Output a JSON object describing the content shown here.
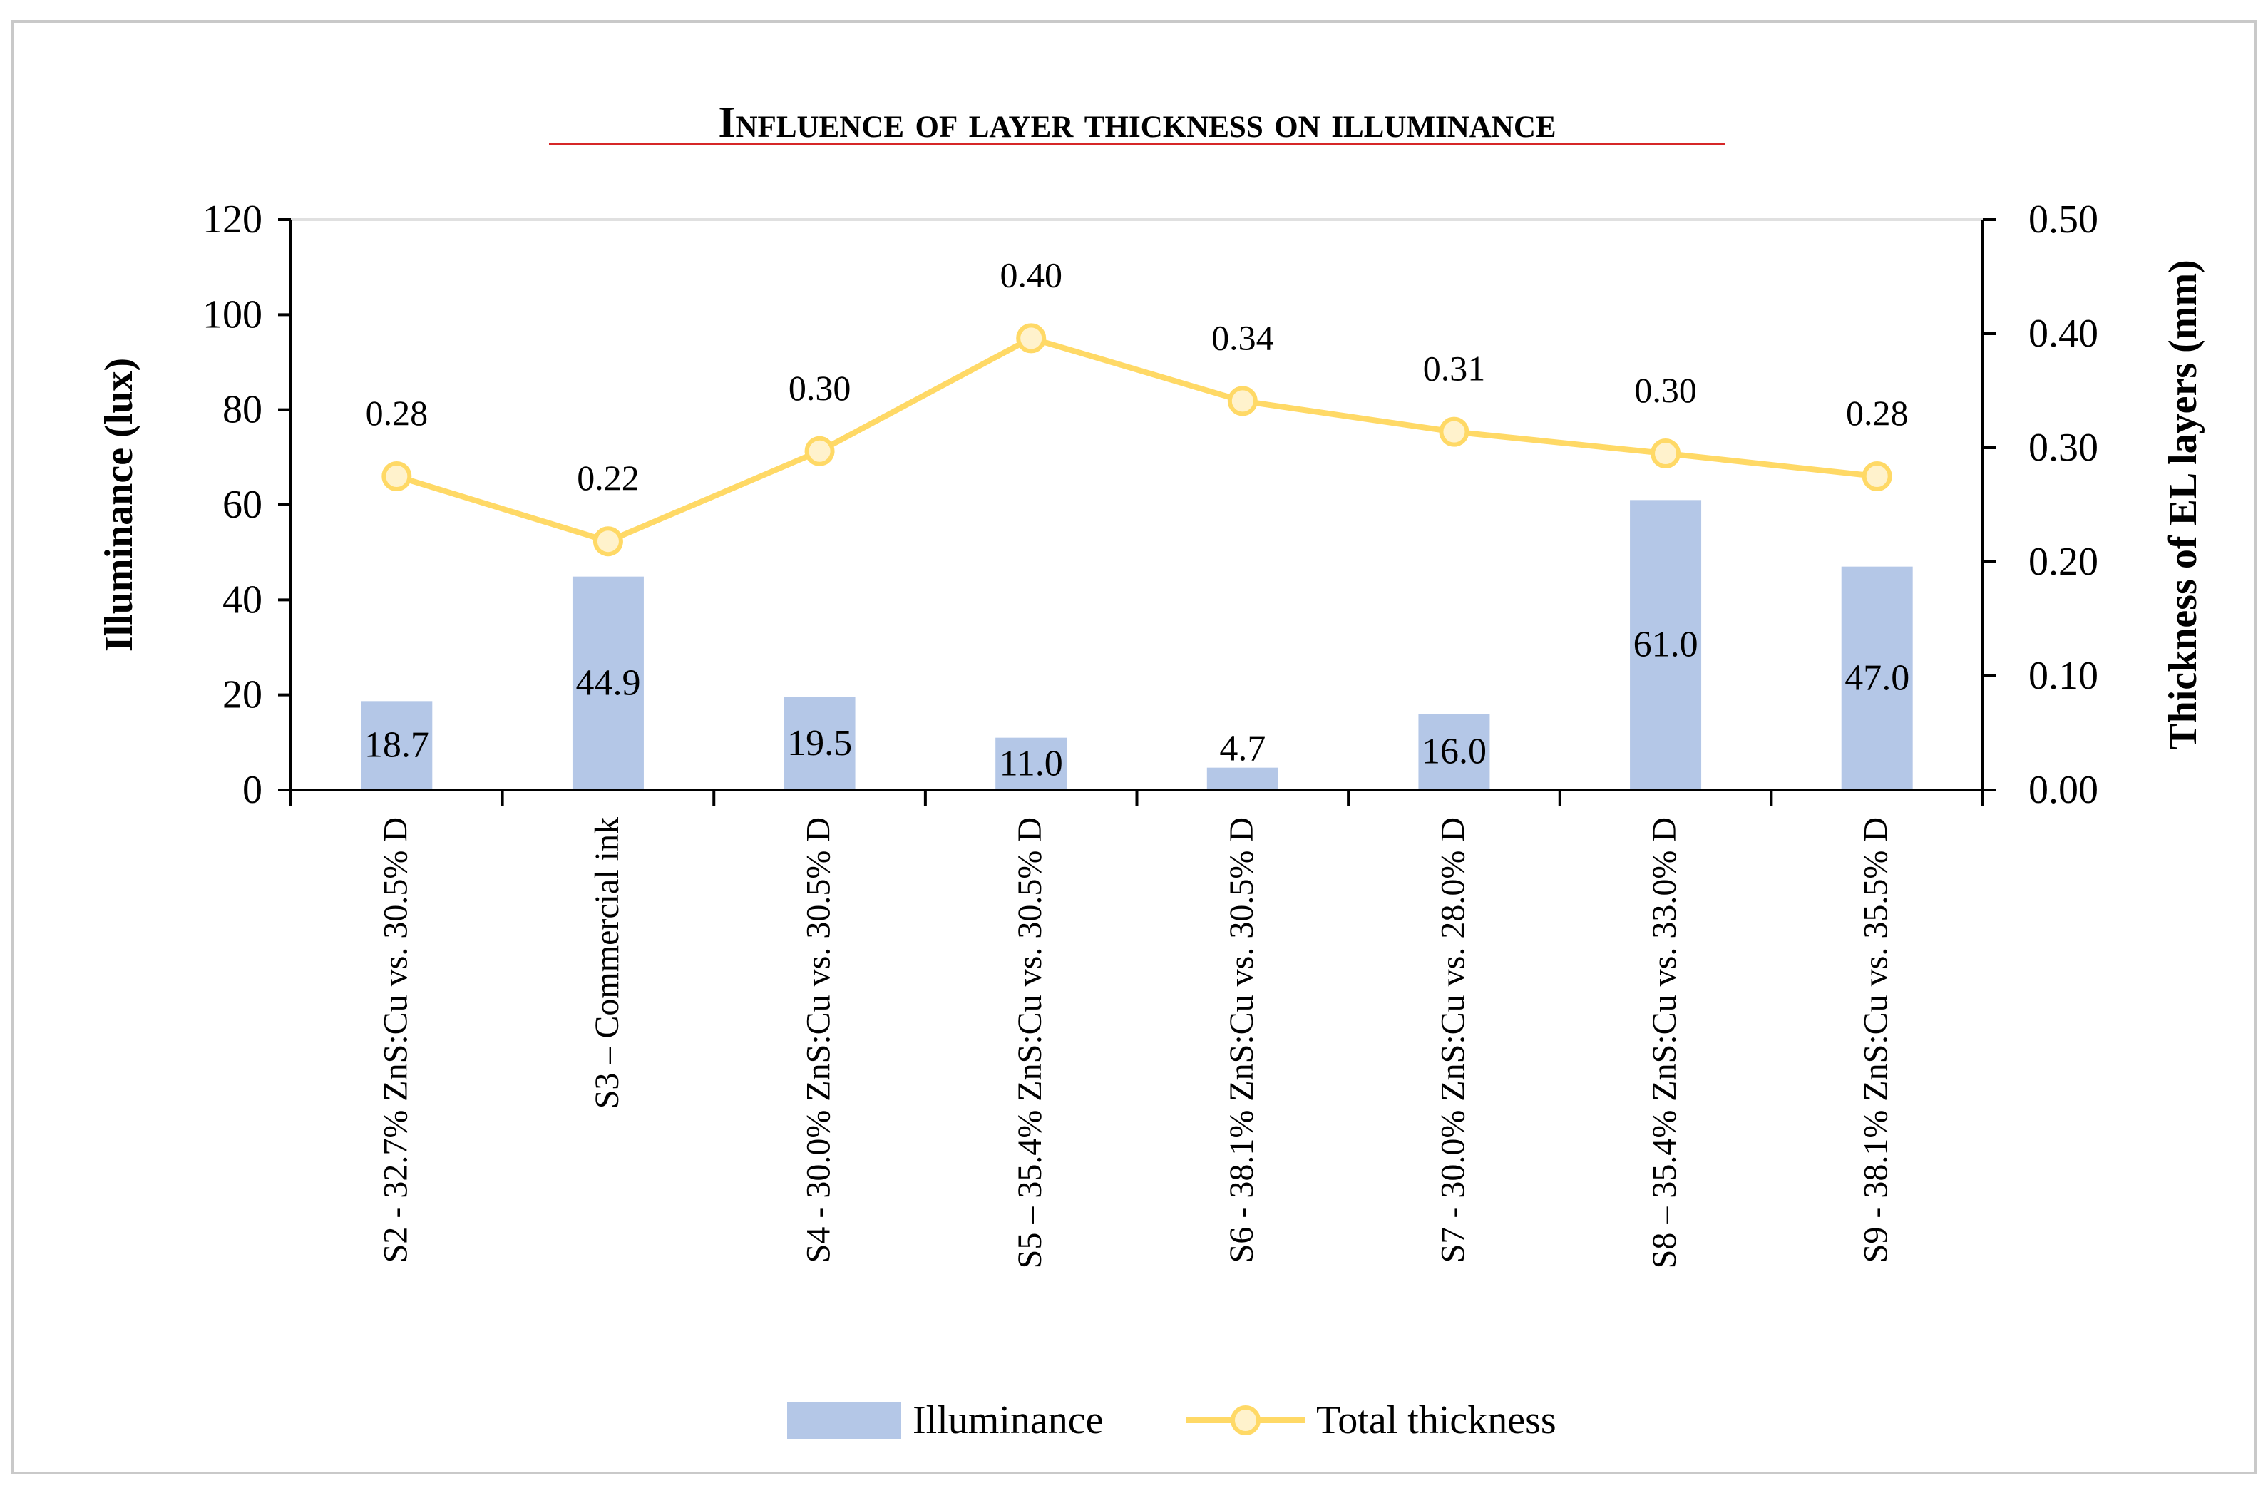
{
  "chart_data": {
    "type": "bar",
    "title": "Influence of layer thickness on illuminance",
    "categories": [
      "S2 - 32.7% ZnS:Cu vs. 30.5% D",
      "S3 – Commercial ink",
      "S4 - 30.0% ZnS:Cu vs. 30.5% D",
      "S5 – 35.4% ZnS:Cu vs. 30.5% D",
      "S6 - 38.1% ZnS:Cu vs. 30.5% D",
      "S7 - 30.0% ZnS:Cu vs. 28.0% D",
      "S8 – 35.4% ZnS:Cu vs. 33.0% D",
      "S9 - 38.1% ZnS:Cu vs. 35.5% D"
    ],
    "series": [
      {
        "name": "Illuminance",
        "type": "bar",
        "axis": "left",
        "color": "#b4c7e7",
        "values": [
          18.7,
          44.9,
          19.5,
          11.0,
          4.7,
          16.0,
          61.0,
          47.0
        ],
        "labels": [
          "18.7",
          "44.9",
          "19.5",
          "11.0",
          "4.7",
          "16.0",
          "61.0",
          "47.0"
        ]
      },
      {
        "name": "Total thickness",
        "type": "line",
        "axis": "right",
        "color": "#ffd966",
        "marker_fill": "#fff2cc",
        "values": [
          0.275,
          0.218,
          0.297,
          0.396,
          0.341,
          0.314,
          0.295,
          0.275
        ],
        "labels": [
          "0.28",
          "0.22",
          "0.30",
          "0.40",
          "0.34",
          "0.31",
          "0.30",
          "0.28"
        ]
      }
    ],
    "ylabel": "Illuminance (lux)",
    "y2label": "Thickness of EL layers (mm)",
    "ylim": [
      0,
      120
    ],
    "y2lim": [
      0,
      0.5
    ],
    "yticks": [
      "0",
      "20",
      "40",
      "60",
      "80",
      "100",
      "120"
    ],
    "y2ticks": [
      "0.00",
      "0.10",
      "0.20",
      "0.30",
      "0.40",
      "0.50"
    ],
    "grid": false,
    "legend": "bottom"
  }
}
